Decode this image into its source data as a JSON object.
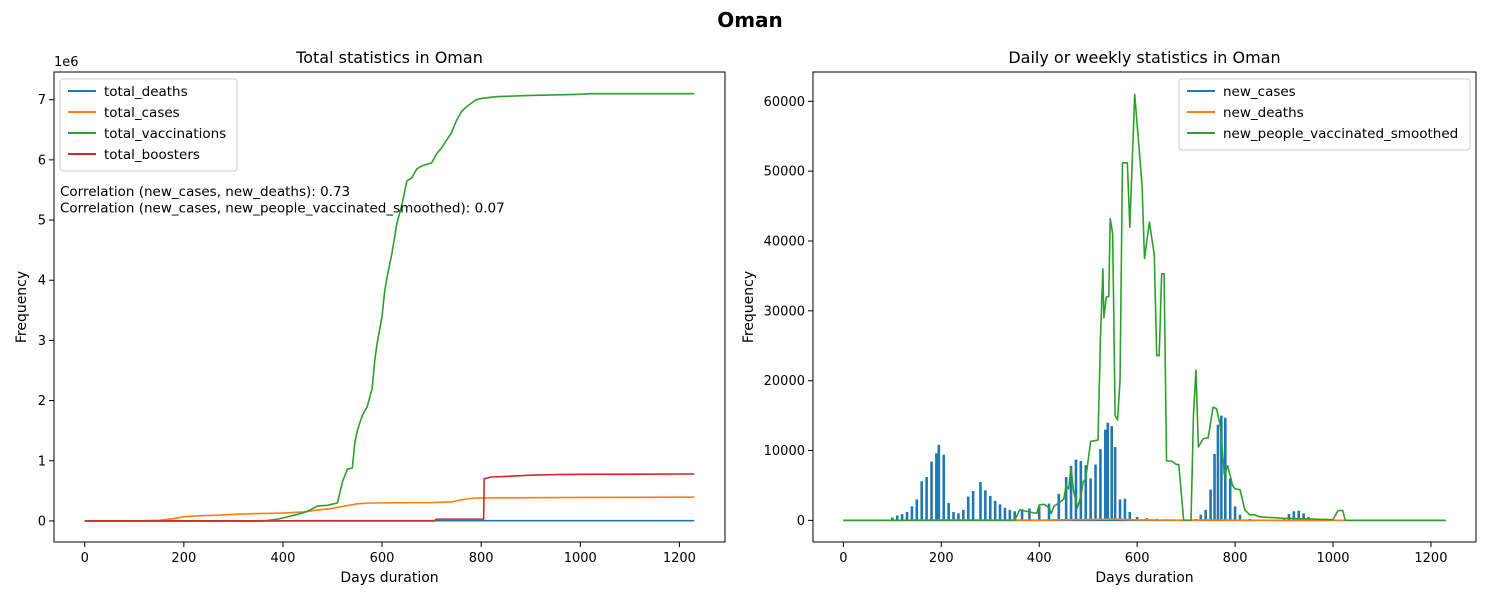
{
  "figure": {
    "title": "Oman"
  },
  "chart_data": [
    {
      "type": "line",
      "title": "Total statistics in Oman",
      "xlabel": "Days duration",
      "ylabel": "Frequency",
      "y_scale_label": "1e6",
      "xlim": [
        -62,
        1292
      ],
      "ylim": [
        -350000,
        7460000
      ],
      "x_ticks": [
        0,
        200,
        400,
        600,
        800,
        1000,
        1200
      ],
      "y_ticks": [
        0,
        1000000,
        2000000,
        3000000,
        4000000,
        5000000,
        6000000,
        7000000
      ],
      "y_tick_labels": [
        "0",
        "1",
        "2",
        "3",
        "4",
        "5",
        "6",
        "7"
      ],
      "legend_position": "top-left",
      "annotations": [
        "Correlation (new_cases, new_deaths): 0.73",
        "Correlation (new_cases, new_people_vaccinated_smoothed): 0.07"
      ],
      "series": [
        {
          "name": "total_deaths",
          "color": "#1f77b4",
          "style": "line",
          "points": [
            [
              0,
              0
            ],
            [
              100,
              300
            ],
            [
              200,
              1500
            ],
            [
              300,
              2500
            ],
            [
              400,
              3100
            ],
            [
              500,
              4000
            ],
            [
              600,
              4200
            ],
            [
              700,
              4300
            ],
            [
              800,
              4600
            ],
            [
              900,
              4700
            ],
            [
              1230,
              4800
            ]
          ]
        },
        {
          "name": "total_cases",
          "color": "#ff7f0e",
          "style": "line",
          "points": [
            [
              0,
              0
            ],
            [
              100,
              1000
            ],
            [
              150,
              10000
            ],
            [
              180,
              40000
            ],
            [
              200,
              70000
            ],
            [
              230,
              85000
            ],
            [
              270,
              95000
            ],
            [
              300,
              110000
            ],
            [
              350,
              122000
            ],
            [
              400,
              130000
            ],
            [
              440,
              150000
            ],
            [
              470,
              180000
            ],
            [
              500,
              210000
            ],
            [
              530,
              255000
            ],
            [
              550,
              285000
            ],
            [
              570,
              296000
            ],
            [
              600,
              300000
            ],
            [
              700,
              305000
            ],
            [
              740,
              315000
            ],
            [
              760,
              350000
            ],
            [
              780,
              375000
            ],
            [
              800,
              382000
            ],
            [
              1000,
              390000
            ],
            [
              1230,
              395000
            ]
          ]
        },
        {
          "name": "total_vaccinations",
          "color": "#2ca02c",
          "style": "line",
          "points": [
            [
              0,
              0
            ],
            [
              360,
              0
            ],
            [
              390,
              30000
            ],
            [
              410,
              70000
            ],
            [
              430,
              110000
            ],
            [
              450,
              160000
            ],
            [
              470,
              250000
            ],
            [
              490,
              260000
            ],
            [
              510,
              300000
            ],
            [
              520,
              650000
            ],
            [
              530,
              860000
            ],
            [
              540,
              880000
            ],
            [
              545,
              1300000
            ],
            [
              550,
              1500000
            ],
            [
              560,
              1750000
            ],
            [
              570,
              1900000
            ],
            [
              580,
              2200000
            ],
            [
              585,
              2650000
            ],
            [
              590,
              2950000
            ],
            [
              600,
              3400000
            ],
            [
              605,
              3800000
            ],
            [
              610,
              4050000
            ],
            [
              615,
              4250000
            ],
            [
              620,
              4450000
            ],
            [
              630,
              4950000
            ],
            [
              640,
              5250000
            ],
            [
              650,
              5650000
            ],
            [
              660,
              5700000
            ],
            [
              670,
              5850000
            ],
            [
              680,
              5900000
            ],
            [
              700,
              5950000
            ],
            [
              710,
              6100000
            ],
            [
              720,
              6200000
            ],
            [
              740,
              6450000
            ],
            [
              750,
              6650000
            ],
            [
              760,
              6800000
            ],
            [
              770,
              6880000
            ],
            [
              780,
              6940000
            ],
            [
              790,
              7000000
            ],
            [
              800,
              7020000
            ],
            [
              830,
              7050000
            ],
            [
              900,
              7070000
            ],
            [
              1000,
              7090000
            ],
            [
              1020,
              7100000
            ],
            [
              1230,
              7100000
            ]
          ]
        },
        {
          "name": "total_boosters",
          "color": "#d62728",
          "style": "line",
          "points": [
            [
              0,
              0
            ],
            [
              705,
              0
            ],
            [
              710,
              30000
            ],
            [
              805,
              30000
            ],
            [
              806,
              700000
            ],
            [
              820,
              730000
            ],
            [
              850,
              740000
            ],
            [
              900,
              760000
            ],
            [
              950,
              770000
            ],
            [
              1000,
              775000
            ],
            [
              1230,
              780000
            ]
          ]
        }
      ]
    },
    {
      "type": "line",
      "title": "Daily or weekly statistics in Oman",
      "xlabel": "Days duration",
      "ylabel": "Frequency",
      "xlim": [
        -62,
        1292
      ],
      "ylim": [
        -3100,
        64200
      ],
      "x_ticks": [
        0,
        200,
        400,
        600,
        800,
        1000,
        1200
      ],
      "y_ticks": [
        0,
        10000,
        20000,
        30000,
        40000,
        50000,
        60000
      ],
      "y_tick_labels": [
        "0",
        "10000",
        "20000",
        "30000",
        "40000",
        "50000",
        "60000"
      ],
      "legend_position": "top-right",
      "series": [
        {
          "name": "new_cases",
          "color": "#1f77b4",
          "style": "spikes",
          "points": [
            [
              100,
              400
            ],
            [
              110,
              700
            ],
            [
              120,
              900
            ],
            [
              130,
              1200
            ],
            [
              140,
              2000
            ],
            [
              150,
              3000
            ],
            [
              160,
              5600
            ],
            [
              170,
              6200
            ],
            [
              180,
              8400
            ],
            [
              190,
              9600
            ],
            [
              195,
              10800
            ],
            [
              205,
              9400
            ],
            [
              215,
              2500
            ],
            [
              225,
              1200
            ],
            [
              235,
              1000
            ],
            [
              245,
              1500
            ],
            [
              255,
              3400
            ],
            [
              265,
              4200
            ],
            [
              280,
              5500
            ],
            [
              290,
              4300
            ],
            [
              300,
              3500
            ],
            [
              310,
              2800
            ],
            [
              320,
              2300
            ],
            [
              330,
              1800
            ],
            [
              340,
              1500
            ],
            [
              350,
              1300
            ],
            [
              365,
              1600
            ],
            [
              380,
              1700
            ],
            [
              400,
              2000
            ],
            [
              420,
              2400
            ],
            [
              440,
              3800
            ],
            [
              455,
              6200
            ],
            [
              465,
              7800
            ],
            [
              475,
              8700
            ],
            [
              485,
              8500
            ],
            [
              495,
              7900
            ],
            [
              505,
              6000
            ],
            [
              515,
              8000
            ],
            [
              525,
              10200
            ],
            [
              535,
              13000
            ],
            [
              540,
              14000
            ],
            [
              548,
              13500
            ],
            [
              555,
              10500
            ],
            [
              565,
              3000
            ],
            [
              575,
              3100
            ],
            [
              585,
              1200
            ],
            [
              600,
              500
            ],
            [
              620,
              300
            ],
            [
              640,
              200
            ],
            [
              660,
              150
            ],
            [
              720,
              200
            ],
            [
              730,
              800
            ],
            [
              740,
              1500
            ],
            [
              750,
              4400
            ],
            [
              758,
              9500
            ],
            [
              765,
              13700
            ],
            [
              772,
              15000
            ],
            [
              780,
              14700
            ],
            [
              790,
              6000
            ],
            [
              800,
              2000
            ],
            [
              810,
              800
            ],
            [
              830,
              200
            ],
            [
              850,
              100
            ],
            [
              900,
              300
            ],
            [
              910,
              900
            ],
            [
              920,
              1300
            ],
            [
              930,
              1400
            ],
            [
              940,
              1000
            ],
            [
              950,
              500
            ],
            [
              960,
              200
            ],
            [
              980,
              100
            ]
          ]
        },
        {
          "name": "new_deaths",
          "color": "#ff7f0e",
          "style": "line",
          "points": [
            [
              0,
              0
            ],
            [
              100,
              0
            ],
            [
              200,
              60
            ],
            [
              300,
              40
            ],
            [
              400,
              30
            ],
            [
              450,
              80
            ],
            [
              500,
              120
            ],
            [
              550,
              180
            ],
            [
              600,
              60
            ],
            [
              700,
              20
            ],
            [
              760,
              40
            ],
            [
              800,
              30
            ],
            [
              900,
              10
            ],
            [
              1230,
              0
            ]
          ]
        },
        {
          "name": "new_people_vaccinated_smoothed",
          "color": "#2ca02c",
          "style": "line",
          "points": [
            [
              0,
              0
            ],
            [
              350,
              0
            ],
            [
              360,
              1500
            ],
            [
              380,
              1200
            ],
            [
              395,
              1000
            ],
            [
              400,
              2200
            ],
            [
              410,
              2300
            ],
            [
              420,
              1800
            ],
            [
              425,
              1000
            ],
            [
              430,
              2000
            ],
            [
              440,
              2500
            ],
            [
              450,
              3000
            ],
            [
              455,
              5000
            ],
            [
              460,
              4500
            ],
            [
              465,
              7500
            ],
            [
              470,
              4300
            ],
            [
              478,
              1800
            ],
            [
              485,
              3500
            ],
            [
              490,
              5500
            ],
            [
              495,
              6000
            ],
            [
              505,
              11300
            ],
            [
              520,
              11500
            ],
            [
              525,
              26000
            ],
            [
              530,
              36000
            ],
            [
              532,
              29000
            ],
            [
              537,
              32000
            ],
            [
              542,
              32000
            ],
            [
              545,
              43200
            ],
            [
              550,
              41000
            ],
            [
              555,
              15000
            ],
            [
              560,
              14400
            ],
            [
              565,
              20000
            ],
            [
              570,
              51200
            ],
            [
              580,
              51200
            ],
            [
              585,
              42000
            ],
            [
              595,
              61000
            ],
            [
              610,
              48000
            ],
            [
              615,
              37500
            ],
            [
              625,
              42700
            ],
            [
              635,
              38000
            ],
            [
              640,
              23600
            ],
            [
              645,
              23600
            ],
            [
              650,
              35300
            ],
            [
              655,
              35300
            ],
            [
              660,
              8500
            ],
            [
              670,
              8500
            ],
            [
              680,
              8000
            ],
            [
              685,
              8000
            ],
            [
              695,
              0
            ],
            [
              710,
              0
            ],
            [
              715,
              15000
            ],
            [
              720,
              21500
            ],
            [
              725,
              10500
            ],
            [
              735,
              11700
            ],
            [
              745,
              11800
            ],
            [
              755,
              16200
            ],
            [
              762,
              16000
            ],
            [
              770,
              13500
            ],
            [
              778,
              6500
            ],
            [
              785,
              7800
            ],
            [
              795,
              5000
            ],
            [
              800,
              4500
            ],
            [
              810,
              4400
            ],
            [
              820,
              1500
            ],
            [
              830,
              800
            ],
            [
              840,
              800
            ],
            [
              850,
              500
            ],
            [
              900,
              300
            ],
            [
              1000,
              100
            ],
            [
              1010,
              1400
            ],
            [
              1020,
              1400
            ],
            [
              1025,
              0
            ],
            [
              1230,
              0
            ]
          ]
        }
      ]
    }
  ]
}
